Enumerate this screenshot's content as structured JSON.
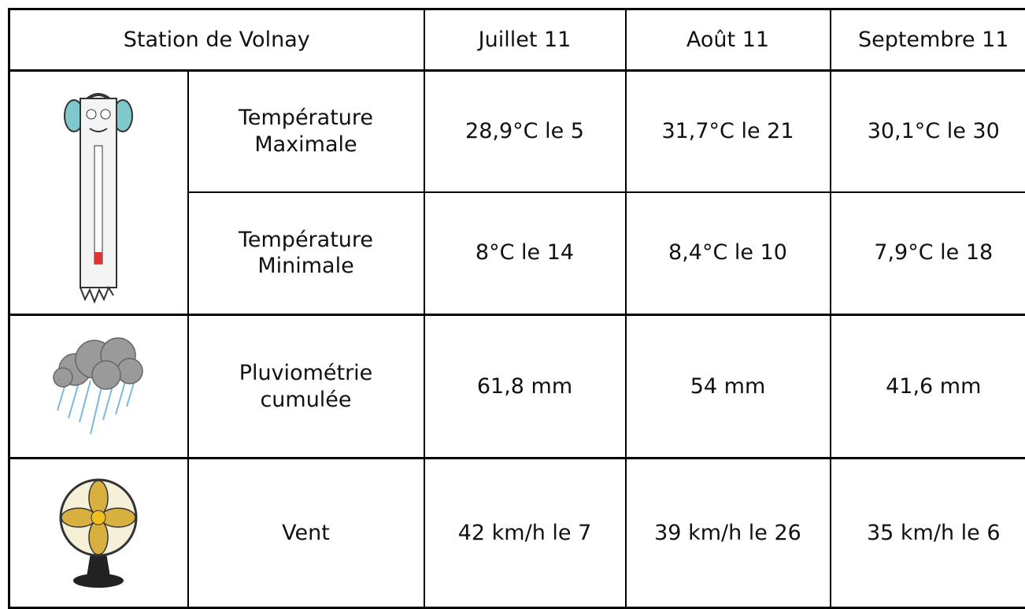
{
  "header": {
    "station": "Station de Volnay",
    "months": [
      "Juillet 11",
      "Août 11",
      "Septembre 11"
    ]
  },
  "table": {
    "rows": [
      {
        "label": "Température Maximale",
        "values": [
          "28,9°C le 5",
          "31,7°C le 21",
          "30,1°C le 30"
        ]
      },
      {
        "label": "Température Minimale",
        "values": [
          "8°C le 14",
          "8,4°C le 10",
          "7,9°C le 18"
        ]
      },
      {
        "label": "Pluviométrie cumulée",
        "values": [
          "61,8 mm",
          "54 mm",
          "41,6 mm"
        ]
      },
      {
        "label": "Vent",
        "values": [
          "42 km/h le 7",
          "39 km/h le 26",
          "35 km/h le 6"
        ]
      }
    ]
  }
}
